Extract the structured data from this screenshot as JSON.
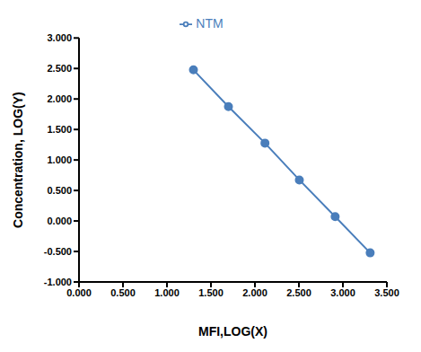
{
  "chart_data": {
    "type": "line",
    "x_label": "MFI,LOG(X)",
    "y_label": "Concentration,  LOG(Y)",
    "x": [
      1.301,
      1.699,
      2.114,
      2.505,
      2.912,
      3.31
    ],
    "series": [
      {
        "name": "NTM",
        "color": "#4a7ebb",
        "marker": "circle",
        "values": [
          2.477,
          1.875,
          1.276,
          0.672,
          0.072,
          -0.523
        ]
      }
    ],
    "xlim": [
      0,
      3.5
    ],
    "xticks": [
      {
        "value": 0,
        "label": "0.000"
      },
      {
        "value": 0.5,
        "label": "0.500"
      },
      {
        "value": 1,
        "label": "1.000"
      },
      {
        "value": 1.5,
        "label": "1.500"
      },
      {
        "value": 2,
        "label": "2.000"
      },
      {
        "value": 2.5,
        "label": "2.500"
      },
      {
        "value": 3,
        "label": "3.000"
      },
      {
        "value": 3.5,
        "label": "3.500"
      }
    ],
    "ylim": [
      -1,
      3
    ],
    "yticks": [
      {
        "value": -1,
        "label": "-1.000"
      },
      {
        "value": -0.5,
        "label": "-0.500"
      },
      {
        "value": 0,
        "label": "0.000"
      },
      {
        "value": 0.5,
        "label": "0.500"
      },
      {
        "value": 1,
        "label": "1.000"
      },
      {
        "value": 1.5,
        "label": "1.500"
      },
      {
        "value": 2,
        "label": "2.000"
      },
      {
        "value": 2.5,
        "label": "2.500"
      },
      {
        "value": 3,
        "label": "3.000"
      }
    ],
    "grid": false,
    "legend": "top"
  }
}
